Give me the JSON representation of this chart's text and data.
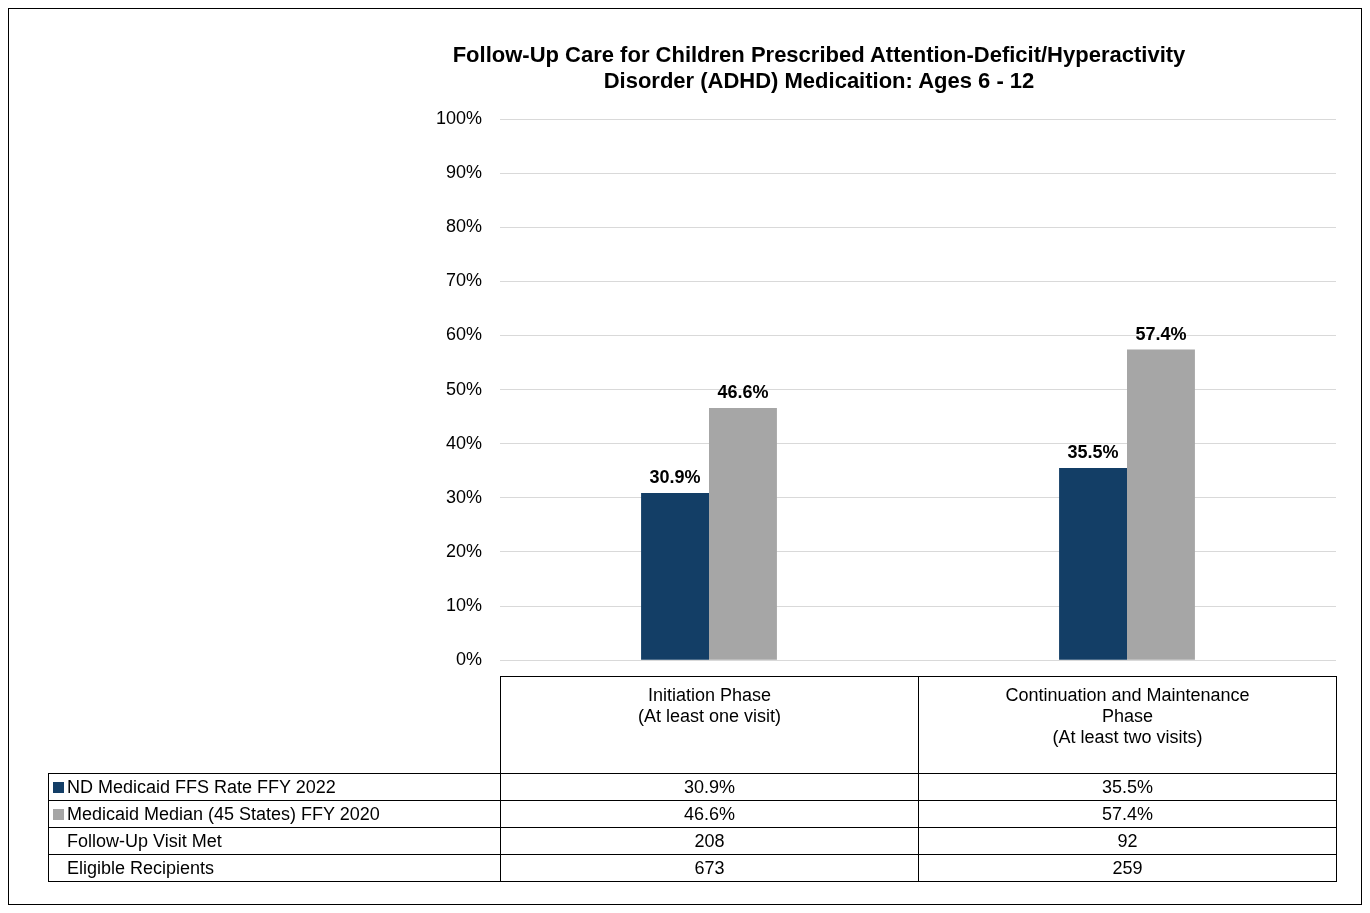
{
  "chart_data": {
    "type": "bar",
    "title": "Follow-Up Care for Children Prescribed Attention-Deficit/Hyperactivity\nDisorder (ADHD) Medicaition: Ages 6 - 12",
    "categories": [
      "Initiation Phase\n(At least one visit)",
      "Continuation and Maintenance\nPhase\n(At least two visits)"
    ],
    "series": [
      {
        "name": "ND Medicaid FFS Rate FFY 2022",
        "color": "#133e66",
        "values": [
          30.9,
          35.5
        ],
        "value_labels": [
          "30.9%",
          "35.5%"
        ]
      },
      {
        "name": "Medicaid Median (45 States) FFY 2020",
        "color": "#a6a6a6",
        "values": [
          46.6,
          57.4
        ],
        "value_labels": [
          "46.6%",
          "57.4%"
        ]
      }
    ],
    "ylim": [
      0,
      100
    ],
    "yticks": [
      {
        "value": 0,
        "label": "0%"
      },
      {
        "value": 10,
        "label": "10%"
      },
      {
        "value": 20,
        "label": "20%"
      },
      {
        "value": 30,
        "label": "30%"
      },
      {
        "value": 40,
        "label": "40%"
      },
      {
        "value": 50,
        "label": "50%"
      },
      {
        "value": 60,
        "label": "60%"
      },
      {
        "value": 70,
        "label": "70%"
      },
      {
        "value": 80,
        "label": "80%"
      },
      {
        "value": 90,
        "label": "90%"
      },
      {
        "value": 100,
        "label": "100%"
      }
    ],
    "grid": "y",
    "legend": "bottom",
    "annotations": [
      "Follow-Up Visit Met",
      "208",
      "92",
      "Eligible Recipients",
      "673",
      "259"
    ]
  }
}
